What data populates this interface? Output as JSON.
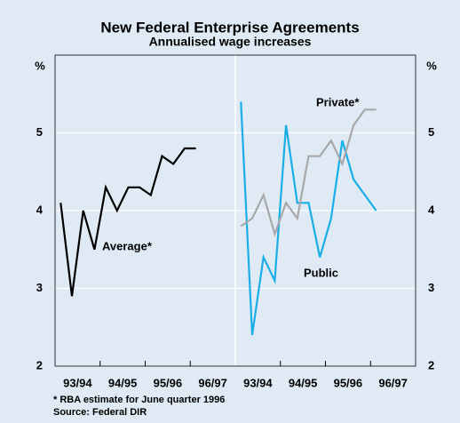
{
  "title": "New Federal Enterprise Agreements",
  "subtitle": "Annualised wage increases",
  "footnote": "*  RBA estimate for June quarter 1996",
  "source": "Source: Federal DIR",
  "chart_data": [
    {
      "type": "line",
      "y_label": "%",
      "ylim": [
        2,
        6
      ],
      "yticks": [
        2,
        3,
        4,
        5
      ],
      "grid": true,
      "xlim": [
        -0.5,
        15.5
      ],
      "xticks": [
        {
          "value": 1.5,
          "label": "93/94"
        },
        {
          "value": 5.5,
          "label": "94/95"
        },
        {
          "value": 9.5,
          "label": "95/96"
        },
        {
          "value": 13.5,
          "label": "96/97"
        }
      ],
      "x": [
        0,
        1,
        2,
        3,
        4,
        5,
        6,
        7,
        8,
        9,
        10,
        11,
        12
      ],
      "series": [
        {
          "name": "Average*",
          "color": "#000000",
          "values": [
            4.1,
            2.9,
            4.0,
            3.5,
            4.3,
            4.0,
            4.3,
            4.3,
            4.2,
            4.7,
            4.6,
            4.8,
            4.8
          ]
        }
      ]
    },
    {
      "type": "line",
      "y_label": "%",
      "ylim": [
        2,
        6
      ],
      "yticks": [
        2,
        3,
        4,
        5
      ],
      "grid": true,
      "xlim": [
        -0.5,
        15.5
      ],
      "xticks": [
        {
          "value": 1.5,
          "label": "93/94"
        },
        {
          "value": 5.5,
          "label": "94/95"
        },
        {
          "value": 9.5,
          "label": "95/96"
        },
        {
          "value": 13.5,
          "label": "96/97"
        }
      ],
      "x": [
        0,
        1,
        2,
        3,
        4,
        5,
        6,
        7,
        8,
        9,
        10,
        11,
        12
      ],
      "series": [
        {
          "name": "Public",
          "color": "#1aaee6",
          "values": [
            5.4,
            2.4,
            3.4,
            3.1,
            5.1,
            4.1,
            4.1,
            3.4,
            3.9,
            4.9,
            4.4,
            4.2,
            4.0
          ]
        },
        {
          "name": "Private*",
          "color": "#a8a8a8",
          "values": [
            3.8,
            3.9,
            4.2,
            3.7,
            4.1,
            3.9,
            4.7,
            4.7,
            4.9,
            4.6,
            5.1,
            5.3,
            5.3
          ]
        }
      ]
    }
  ]
}
